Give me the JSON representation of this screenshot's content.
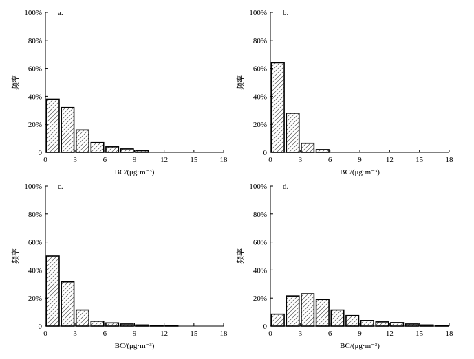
{
  "figure": {
    "colors": {
      "bar_fill": "#ffffff",
      "bar_stroke": "#000000",
      "hatch": "#555555",
      "axis": "#000000"
    }
  },
  "chart_data": [
    {
      "type": "bar",
      "panel_label": "a.",
      "xlabel": "BC/(μg·m⁻³)",
      "ylabel": "频率",
      "xlim": [
        0,
        18
      ],
      "xticks": [
        0,
        3,
        6,
        9,
        12,
        15,
        18
      ],
      "xtick_labels": [
        "0",
        "3",
        "6",
        "9",
        "12",
        "15",
        "18"
      ],
      "ylim": [
        0,
        100
      ],
      "yticks": [
        0,
        20,
        40,
        60,
        80,
        100
      ],
      "ytick_labels": [
        "0",
        "20%",
        "40%",
        "60%",
        "80%",
        "100%"
      ],
      "bin_width": 1.5,
      "bin_starts": [
        0,
        1.5,
        3,
        4.5,
        6,
        7.5,
        9
      ],
      "values": [
        38,
        32,
        16,
        7,
        4,
        2.5,
        1.2
      ]
    },
    {
      "type": "bar",
      "panel_label": "b.",
      "xlabel": "BC/(μg·m⁻³)",
      "ylabel": "频率",
      "xlim": [
        0,
        18
      ],
      "xticks": [
        0,
        3,
        6,
        9,
        12,
        15,
        18
      ],
      "xtick_labels": [
        "0",
        "3",
        "6",
        "9",
        "12",
        "15",
        "18"
      ],
      "ylim": [
        0,
        100
      ],
      "yticks": [
        0,
        20,
        40,
        60,
        80,
        100
      ],
      "ytick_labels": [
        "0",
        "20%",
        "40%",
        "60%",
        "80%",
        "100%"
      ],
      "bin_width": 1.5,
      "bin_starts": [
        0,
        1.5,
        3,
        4.5
      ],
      "values": [
        64,
        28,
        6.5,
        2
      ]
    },
    {
      "type": "bar",
      "panel_label": "c.",
      "xlabel": "BC/(μg·m⁻³)",
      "ylabel": "频率",
      "xlim": [
        0,
        18
      ],
      "xticks": [
        0,
        3,
        6,
        9,
        12,
        15,
        18
      ],
      "xtick_labels": [
        "0",
        "3",
        "6",
        "9",
        "12",
        "15",
        "18"
      ],
      "ylim": [
        0,
        100
      ],
      "yticks": [
        0,
        20,
        40,
        60,
        80,
        100
      ],
      "ytick_labels": [
        "0",
        "20%",
        "40%",
        "60%",
        "80%",
        "100%"
      ],
      "bin_width": 1.5,
      "bin_starts": [
        0,
        1.5,
        3,
        4.5,
        6,
        7.5,
        9,
        10.5,
        12
      ],
      "values": [
        50,
        31.5,
        11.5,
        3.5,
        2.3,
        1.5,
        0.8,
        0.4,
        0.2
      ]
    },
    {
      "type": "bar",
      "panel_label": "d.",
      "xlabel": "BC/(μg·m⁻³)",
      "ylabel": "频率",
      "xlim": [
        0,
        18
      ],
      "xticks": [
        0,
        3,
        6,
        9,
        12,
        15,
        18
      ],
      "xtick_labels": [
        "0",
        "3",
        "6",
        "9",
        "12",
        "15",
        "18"
      ],
      "ylim": [
        0,
        100
      ],
      "yticks": [
        0,
        20,
        40,
        60,
        80,
        100
      ],
      "ytick_labels": [
        "0",
        "20%",
        "40%",
        "60%",
        "80%",
        "100%"
      ],
      "bin_width": 1.5,
      "bin_starts": [
        0,
        1.5,
        3,
        4.5,
        6,
        7.5,
        9,
        10.5,
        12,
        13.5,
        15,
        16.5
      ],
      "values": [
        8.5,
        21.5,
        23,
        19,
        11.5,
        7.5,
        4,
        3,
        2.5,
        1.5,
        0.8,
        0.4
      ]
    }
  ]
}
